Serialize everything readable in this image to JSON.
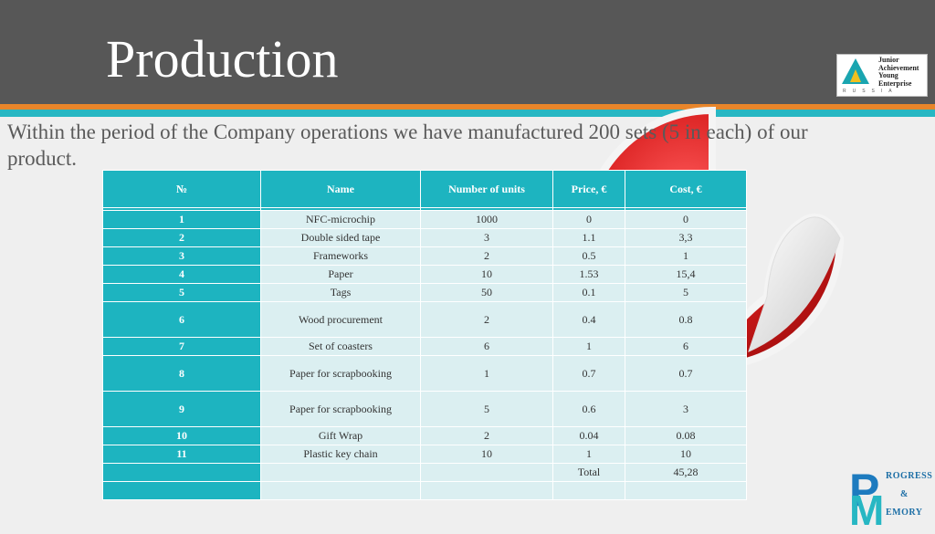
{
  "slide": {
    "title": "Production",
    "intro": "Within the period of the Company operations we have manufactured 200 sets (5 in each) of our product."
  },
  "logo": {
    "lines": [
      "Junior",
      "Achievement",
      "Young",
      "Enterprise"
    ],
    "sub": "RUSSIA"
  },
  "brand": {
    "p": "P",
    "m": "M",
    "line1": "ROGRESS",
    "line2": "&",
    "line3": "EMORY"
  },
  "table": {
    "headers": [
      "№",
      "Name",
      "Number of units",
      "Price, €",
      "Cost,  €"
    ],
    "rows": [
      {
        "n": "1",
        "name": "NFC-microchip",
        "units": "1000",
        "price": "0",
        "cost": "0"
      },
      {
        "n": "2",
        "name": "Double sided tape",
        "units": "3",
        "price": "1.1",
        "cost": "3,3"
      },
      {
        "n": "3",
        "name": "Frameworks",
        "units": "2",
        "price": "0.5",
        "cost": "1"
      },
      {
        "n": "4",
        "name": "Paper",
        "units": "10",
        "price": "1.53",
        "cost": "15,4"
      },
      {
        "n": "5",
        "name": "Tags",
        "units": "50",
        "price": "0.1",
        "cost": "5"
      },
      {
        "n": "6",
        "name": "Wood procurement",
        "units": "2",
        "price": "0.4",
        "cost": "0.8"
      },
      {
        "n": "7",
        "name": "Set of coasters",
        "units": "6",
        "price": "1",
        "cost": "6"
      },
      {
        "n": "8",
        "name": "Paper for scrapbooking",
        "units": "1",
        "price": "0.7",
        "cost": "0.7"
      },
      {
        "n": "9",
        "name": "Paper for scrapbooking",
        "units": "5",
        "price": "0.6",
        "cost": "3"
      },
      {
        "n": "10",
        "name": "Gift Wrap",
        "units": "2",
        "price": "0.04",
        "cost": "0.08"
      },
      {
        "n": "11",
        "name": "Plastic key chain",
        "units": "10",
        "price": "1",
        "cost": "10"
      }
    ],
    "total_label": "Total",
    "total_value": "45,28"
  },
  "colors": {
    "header_bg": "#575757",
    "accent_orange": "#e8852a",
    "accent_teal": "#27b7c3",
    "sticker_red": "#d81e1e"
  }
}
